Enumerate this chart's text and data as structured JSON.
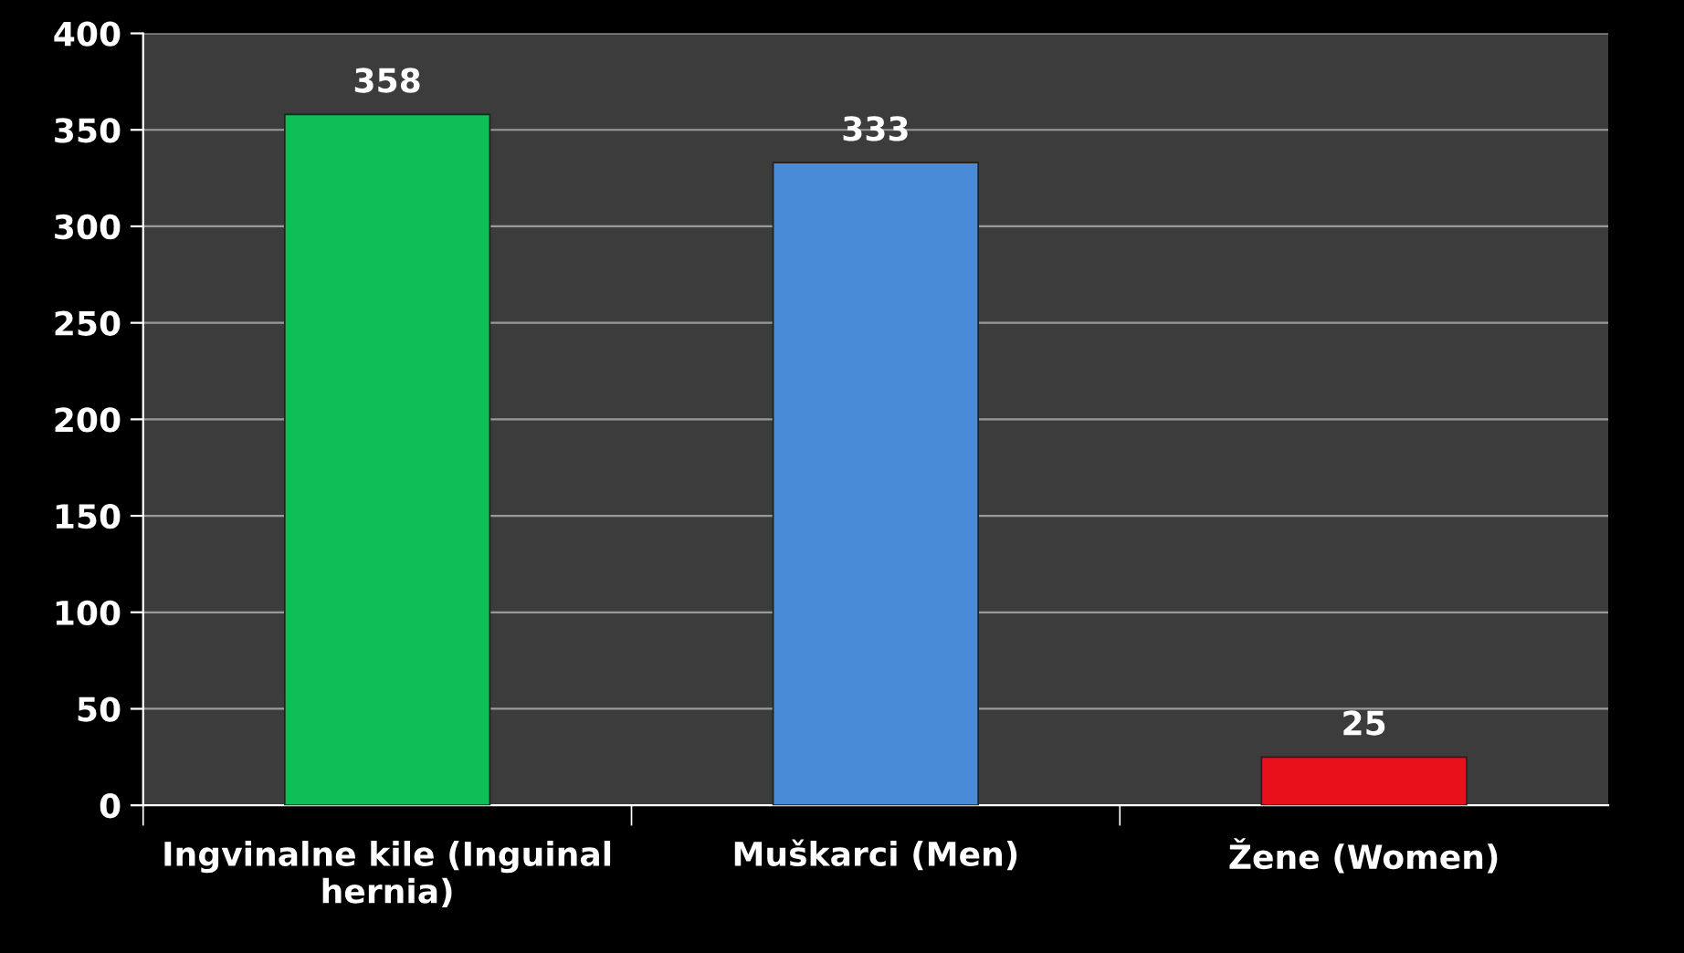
{
  "chart_data": {
    "type": "bar",
    "categories": [
      "Ingvinalne kile (Inguinal\nhernia)",
      "Muškarci (Men)",
      "Žene (Women)"
    ],
    "values": [
      358,
      333,
      25
    ],
    "colors": [
      "#0fbf55",
      "#4a8bd8",
      "#e8101a"
    ],
    "ylim": [
      0,
      400
    ],
    "yticks": [
      0,
      50,
      100,
      150,
      200,
      250,
      300,
      350,
      400
    ],
    "grid": "y",
    "data_labels": true,
    "legend": false
  }
}
